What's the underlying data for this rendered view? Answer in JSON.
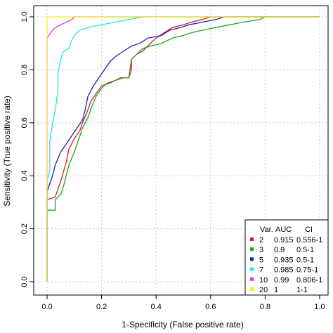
{
  "chart_data": {
    "type": "line",
    "xlabel": "1-Specificity (False positive rate)",
    "ylabel": "Sensitivity (True positive rate)",
    "xlim": [
      0,
      1
    ],
    "ylim": [
      0,
      1
    ],
    "xticks": [
      "0.0",
      "0.2",
      "0.4",
      "0.6",
      "0.8",
      "1.0"
    ],
    "yticks": [
      "0.0",
      "0.2",
      "0.4",
      "0.6",
      "0.8",
      "1.0"
    ],
    "grid": true,
    "legend": {
      "placement": "bottom-right",
      "headers": [
        "Var.",
        "AUC",
        "CI"
      ],
      "entries": [
        {
          "var": "2",
          "auc": "0.915",
          "ci": "0.556-1",
          "color": "#e41a1c"
        },
        {
          "var": "3",
          "auc": "0.9",
          "ci": "0.5-1",
          "color": "#1aa51a"
        },
        {
          "var": "5",
          "auc": "0.935",
          "ci": "0.5-1",
          "color": "#1f1fb4"
        },
        {
          "var": "7",
          "auc": "0.985",
          "ci": "0.75-1",
          "color": "#22e5e5"
        },
        {
          "var": "10",
          "auc": "0.99",
          "ci": "0.806-1",
          "color": "#e533e5"
        },
        {
          "var": "20",
          "auc": "1",
          "ci": "1-1",
          "color": "#f2f21a"
        }
      ]
    },
    "series": [
      {
        "color": "#e41a1c",
        "points": [
          [
            0,
            0
          ],
          [
            0,
            0.31
          ],
          [
            0.03,
            0.32
          ],
          [
            0.04,
            0.35
          ],
          [
            0.05,
            0.38
          ],
          [
            0.07,
            0.45
          ],
          [
            0.08,
            0.5
          ],
          [
            0.1,
            0.54
          ],
          [
            0.12,
            0.57
          ],
          [
            0.13,
            0.6
          ],
          [
            0.15,
            0.65
          ],
          [
            0.16,
            0.68
          ],
          [
            0.18,
            0.71
          ],
          [
            0.2,
            0.74
          ],
          [
            0.23,
            0.75
          ],
          [
            0.25,
            0.76
          ],
          [
            0.27,
            0.77
          ],
          [
            0.3,
            0.77
          ],
          [
            0.31,
            0.84
          ],
          [
            0.33,
            0.86
          ],
          [
            0.35,
            0.87
          ],
          [
            0.38,
            0.9
          ],
          [
            0.4,
            0.92
          ],
          [
            0.43,
            0.94
          ],
          [
            0.46,
            0.96
          ],
          [
            0.5,
            0.97
          ],
          [
            0.53,
            0.98
          ],
          [
            0.57,
            0.99
          ],
          [
            0.6,
            1
          ],
          [
            0.8,
            1
          ],
          [
            1,
            1
          ]
        ]
      },
      {
        "color": "#1aa51a",
        "points": [
          [
            0,
            0
          ],
          [
            0,
            0.27
          ],
          [
            0.03,
            0.27
          ],
          [
            0.03,
            0.31
          ],
          [
            0.05,
            0.33
          ],
          [
            0.06,
            0.36
          ],
          [
            0.07,
            0.4
          ],
          [
            0.08,
            0.44
          ],
          [
            0.1,
            0.49
          ],
          [
            0.12,
            0.55
          ],
          [
            0.13,
            0.58
          ],
          [
            0.15,
            0.62
          ],
          [
            0.16,
            0.65
          ],
          [
            0.18,
            0.7
          ],
          [
            0.2,
            0.73
          ],
          [
            0.22,
            0.75
          ],
          [
            0.25,
            0.76
          ],
          [
            0.28,
            0.77
          ],
          [
            0.3,
            0.77
          ],
          [
            0.31,
            0.8
          ],
          [
            0.31,
            0.84
          ],
          [
            0.33,
            0.86
          ],
          [
            0.35,
            0.88
          ],
          [
            0.38,
            0.89
          ],
          [
            0.42,
            0.9
          ],
          [
            0.46,
            0.92
          ],
          [
            0.5,
            0.93
          ],
          [
            0.53,
            0.94
          ],
          [
            0.57,
            0.95
          ],
          [
            0.62,
            0.96
          ],
          [
            0.67,
            0.97
          ],
          [
            0.72,
            0.98
          ],
          [
            0.78,
            0.99
          ],
          [
            0.8,
            1
          ],
          [
            1,
            1
          ]
        ]
      },
      {
        "color": "#1f1fb4",
        "points": [
          [
            0,
            0
          ],
          [
            0,
            0.34
          ],
          [
            0.01,
            0.37
          ],
          [
            0.02,
            0.4
          ],
          [
            0.03,
            0.44
          ],
          [
            0.05,
            0.49
          ],
          [
            0.07,
            0.52
          ],
          [
            0.09,
            0.55
          ],
          [
            0.11,
            0.58
          ],
          [
            0.13,
            0.61
          ],
          [
            0.14,
            0.65
          ],
          [
            0.15,
            0.7
          ],
          [
            0.17,
            0.74
          ],
          [
            0.19,
            0.77
          ],
          [
            0.21,
            0.8
          ],
          [
            0.23,
            0.83
          ],
          [
            0.25,
            0.85
          ],
          [
            0.28,
            0.87
          ],
          [
            0.31,
            0.89
          ],
          [
            0.34,
            0.9
          ],
          [
            0.37,
            0.92
          ],
          [
            0.42,
            0.93
          ],
          [
            0.45,
            0.95
          ],
          [
            0.49,
            0.96
          ],
          [
            0.52,
            0.97
          ],
          [
            0.57,
            0.98
          ],
          [
            0.62,
            0.99
          ],
          [
            0.65,
            1
          ],
          [
            0.67,
            1
          ],
          [
            0.8,
            1
          ],
          [
            1,
            1
          ]
        ]
      },
      {
        "color": "#22e5e5",
        "points": [
          [
            0,
            0
          ],
          [
            0,
            0.38
          ],
          [
            0.01,
            0.42
          ],
          [
            0.01,
            0.53
          ],
          [
            0.02,
            0.6
          ],
          [
            0.03,
            0.65
          ],
          [
            0.04,
            0.72
          ],
          [
            0.04,
            0.79
          ],
          [
            0.05,
            0.84
          ],
          [
            0.06,
            0.87
          ],
          [
            0.08,
            0.88
          ],
          [
            0.09,
            0.91
          ],
          [
            0.1,
            0.93
          ],
          [
            0.12,
            0.95
          ],
          [
            0.15,
            0.96
          ],
          [
            0.2,
            0.97
          ],
          [
            0.25,
            0.98
          ],
          [
            0.3,
            0.99
          ],
          [
            0.35,
            1
          ],
          [
            0.43,
            1
          ],
          [
            1,
            1
          ]
        ]
      },
      {
        "color": "#e533e5",
        "points": [
          [
            0,
            0
          ],
          [
            0,
            0.92
          ],
          [
            0.02,
            0.95
          ],
          [
            0.03,
            0.96
          ],
          [
            0.05,
            0.97
          ],
          [
            0.07,
            0.98
          ],
          [
            0.09,
            0.99
          ],
          [
            0.1,
            1
          ],
          [
            0.14,
            1
          ],
          [
            1,
            1
          ]
        ]
      },
      {
        "color": "#f2f21a",
        "points": [
          [
            0,
            0
          ],
          [
            0,
            1
          ],
          [
            1,
            1
          ]
        ]
      }
    ]
  }
}
